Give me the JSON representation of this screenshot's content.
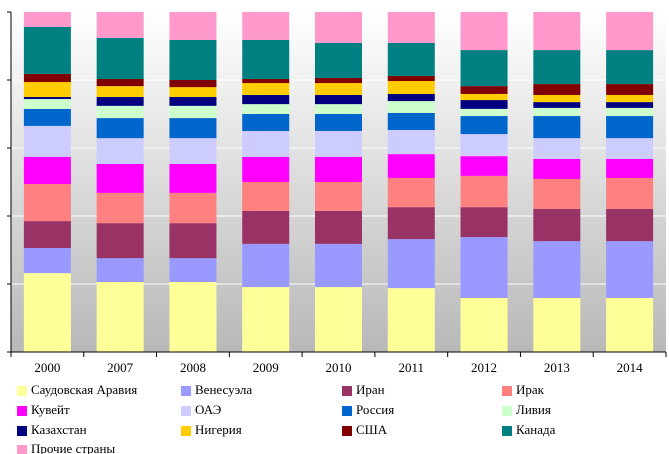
{
  "chart_data": {
    "type": "stacked_bar",
    "categories": [
      "2000",
      "2007",
      "2008",
      "2009",
      "2010",
      "2011",
      "2012",
      "2013",
      "2014"
    ],
    "ylim": [
      0,
      100
    ],
    "yticks": [
      0,
      20,
      40,
      60,
      80,
      100
    ],
    "grid": true,
    "series": [
      {
        "name": "Саудовская Аравия",
        "color": "#ffff99",
        "values": [
          23.2,
          20.6,
          20.6,
          19.1,
          19.1,
          18.8,
          15.9,
          15.9,
          15.9
        ]
      },
      {
        "name": "Венесуэла",
        "color": "#9999ff",
        "values": [
          7.4,
          7.0,
          7.0,
          12.7,
          12.7,
          14.4,
          17.9,
          16.7,
          16.7
        ]
      },
      {
        "name": "Иран",
        "color": "#993366",
        "values": [
          7.9,
          10.3,
          10.3,
          9.7,
          9.7,
          9.4,
          8.8,
          9.5,
          9.5
        ]
      },
      {
        "name": "Ирак",
        "color": "#ff8080",
        "values": [
          10.9,
          8.9,
          8.9,
          8.5,
          8.5,
          8.6,
          9.2,
          8.8,
          9.1
        ]
      },
      {
        "name": "Кувейт",
        "color": "#ff00ff",
        "values": [
          8.0,
          8.5,
          8.5,
          7.4,
          7.4,
          7.0,
          5.8,
          5.9,
          5.6
        ]
      },
      {
        "name": "ОАЭ",
        "color": "#ccccff",
        "values": [
          9.1,
          7.6,
          7.6,
          7.6,
          7.6,
          7.1,
          6.5,
          6.1,
          6.1
        ]
      },
      {
        "name": "Россия",
        "color": "#0066cc",
        "values": [
          5.0,
          5.9,
          5.9,
          5.0,
          5.0,
          5.0,
          5.3,
          6.5,
          6.5
        ]
      },
      {
        "name": "Ливия",
        "color": "#ccffcc",
        "values": [
          2.9,
          3.6,
          3.6,
          2.9,
          2.9,
          3.5,
          2.1,
          2.4,
          2.4
        ]
      },
      {
        "name": "Казахстан",
        "color": "#000080",
        "values": [
          0.6,
          2.6,
          2.6,
          2.7,
          2.7,
          2.1,
          2.6,
          1.7,
          1.7
        ]
      },
      {
        "name": "Нигерия",
        "color": "#ffcc00",
        "values": [
          4.4,
          3.2,
          2.9,
          3.5,
          3.5,
          3.8,
          1.8,
          2.1,
          2.1
        ]
      },
      {
        "name": "США",
        "color": "#800000",
        "values": [
          2.4,
          2.1,
          2.1,
          1.2,
          1.5,
          1.5,
          2.3,
          3.2,
          3.2
        ]
      },
      {
        "name": "Канада",
        "color": "#008080",
        "values": [
          13.8,
          12.1,
          11.8,
          11.5,
          10.3,
          9.7,
          10.6,
          10.0,
          10.0
        ]
      },
      {
        "name": "Прочие страны",
        "color": "#ff99cc",
        "values": [
          4.4,
          7.6,
          8.2,
          8.2,
          9.1,
          9.1,
          11.2,
          11.2,
          11.2
        ]
      }
    ]
  }
}
